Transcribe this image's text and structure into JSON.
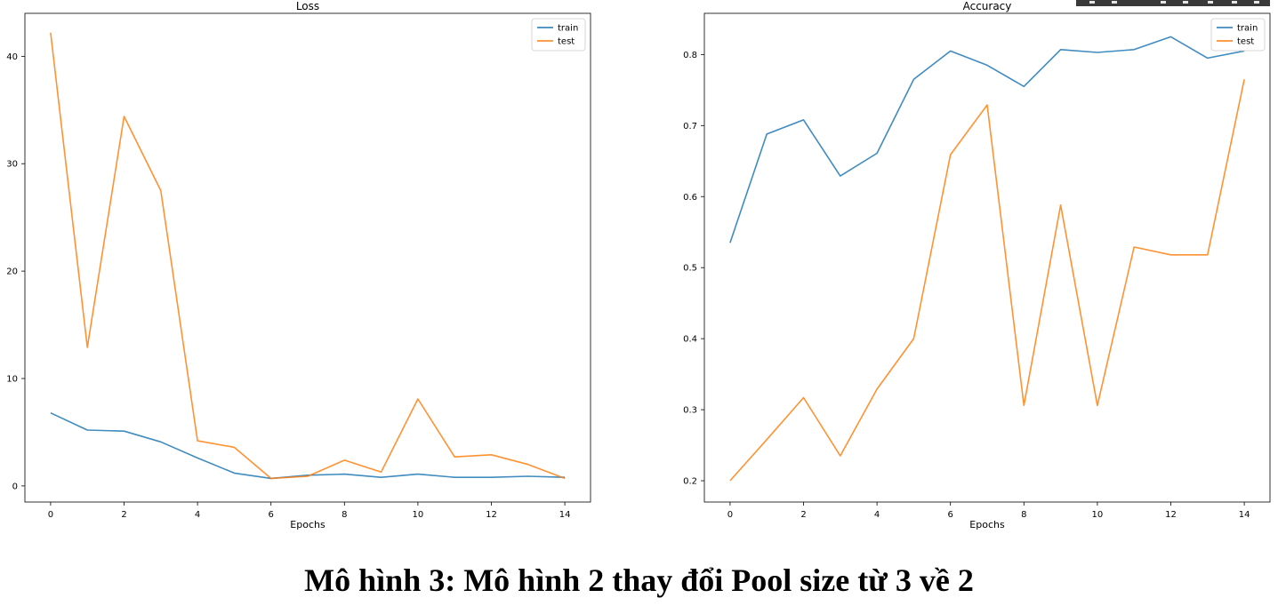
{
  "caption": "Mô hình 3: Mô hình 2 thay đổi Pool size từ 3 về 2",
  "colors": {
    "train": "#1f77b4",
    "test": "#ff7f0e"
  },
  "chart_data": [
    {
      "type": "line",
      "title": "Loss",
      "xlabel": "Epochs",
      "ylabel": "",
      "x": [
        0,
        1,
        2,
        3,
        4,
        5,
        6,
        7,
        8,
        9,
        10,
        11,
        12,
        13,
        14
      ],
      "xlim": [
        -0.7,
        14.7
      ],
      "ylim": [
        -1.5,
        44.0
      ],
      "xticks": [
        0,
        2,
        4,
        6,
        8,
        10,
        12,
        14
      ],
      "yticks": [
        0,
        10,
        20,
        30,
        40
      ],
      "legend": "top-right",
      "grid": false,
      "series": [
        {
          "name": "train",
          "values": [
            6.8,
            5.2,
            5.1,
            4.1,
            2.6,
            1.2,
            0.7,
            1.0,
            1.1,
            0.8,
            1.1,
            0.8,
            0.8,
            0.9,
            0.8
          ]
        },
        {
          "name": "test",
          "values": [
            42.2,
            12.9,
            34.4,
            27.5,
            4.2,
            3.6,
            0.7,
            0.9,
            2.4,
            1.3,
            8.1,
            2.7,
            2.9,
            2.0,
            0.7
          ]
        }
      ]
    },
    {
      "type": "line",
      "title": "Accuracy",
      "xlabel": "Epochs",
      "ylabel": "",
      "x": [
        0,
        1,
        2,
        3,
        4,
        5,
        6,
        7,
        8,
        9,
        10,
        11,
        12,
        13,
        14
      ],
      "xlim": [
        -0.7,
        14.7
      ],
      "ylim": [
        0.17,
        0.858
      ],
      "xticks": [
        0,
        2,
        4,
        6,
        8,
        10,
        12,
        14
      ],
      "yticks": [
        0.2,
        0.3,
        0.4,
        0.5,
        0.6,
        0.7,
        0.8
      ],
      "legend": "top-right",
      "grid": false,
      "series": [
        {
          "name": "train",
          "values": [
            0.535,
            0.688,
            0.708,
            0.629,
            0.661,
            0.765,
            0.805,
            0.785,
            0.755,
            0.807,
            0.803,
            0.807,
            0.825,
            0.795,
            0.805
          ]
        },
        {
          "name": "test",
          "values": [
            0.2,
            0.258,
            0.317,
            0.235,
            0.329,
            0.4,
            0.659,
            0.729,
            0.306,
            0.588,
            0.306,
            0.529,
            0.518,
            0.518,
            0.765
          ]
        }
      ]
    }
  ]
}
